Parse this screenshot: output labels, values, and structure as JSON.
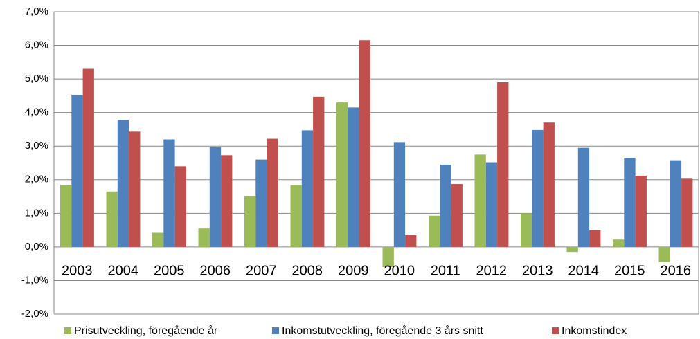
{
  "chart_data": {
    "type": "bar",
    "categories": [
      "2003",
      "2004",
      "2005",
      "2006",
      "2007",
      "2008",
      "2009",
      "2010",
      "2011",
      "2012",
      "2013",
      "2014",
      "2015",
      "2016"
    ],
    "series": [
      {
        "name": "Prisutveckling, föregående år",
        "color": "#9bbb59",
        "values": [
          1.85,
          1.65,
          0.42,
          0.55,
          1.5,
          1.85,
          4.3,
          -0.6,
          0.93,
          2.75,
          1.0,
          -0.15,
          0.22,
          -0.45
        ]
      },
      {
        "name": "Inkomstutveckling, föregående 3 års snitt",
        "color": "#4f81bd",
        "values": [
          4.53,
          3.78,
          3.2,
          2.97,
          2.6,
          3.47,
          4.15,
          3.12,
          2.45,
          2.52,
          3.48,
          2.95,
          2.65,
          2.58
        ]
      },
      {
        "name": "Inkomstindex",
        "color": "#c0504d",
        "values": [
          5.3,
          3.43,
          2.4,
          2.73,
          3.22,
          4.47,
          6.15,
          0.35,
          1.87,
          4.9,
          3.7,
          0.5,
          2.12,
          2.03
        ]
      }
    ],
    "ylim": [
      -2,
      7
    ],
    "yticks": [
      {
        "value": -2,
        "label": "-2,0%"
      },
      {
        "value": -1,
        "label": "-1,0%"
      },
      {
        "value": 0,
        "label": "0,0%"
      },
      {
        "value": 1,
        "label": "1,0%"
      },
      {
        "value": 2,
        "label": "2,0%"
      },
      {
        "value": 3,
        "label": "3,0%"
      },
      {
        "value": 4,
        "label": "4,0%"
      },
      {
        "value": 5,
        "label": "5,0%"
      },
      {
        "value": 6,
        "label": "6,0%"
      },
      {
        "value": 7,
        "label": "7,0%"
      }
    ],
    "grid": true,
    "legend": "bottom"
  }
}
